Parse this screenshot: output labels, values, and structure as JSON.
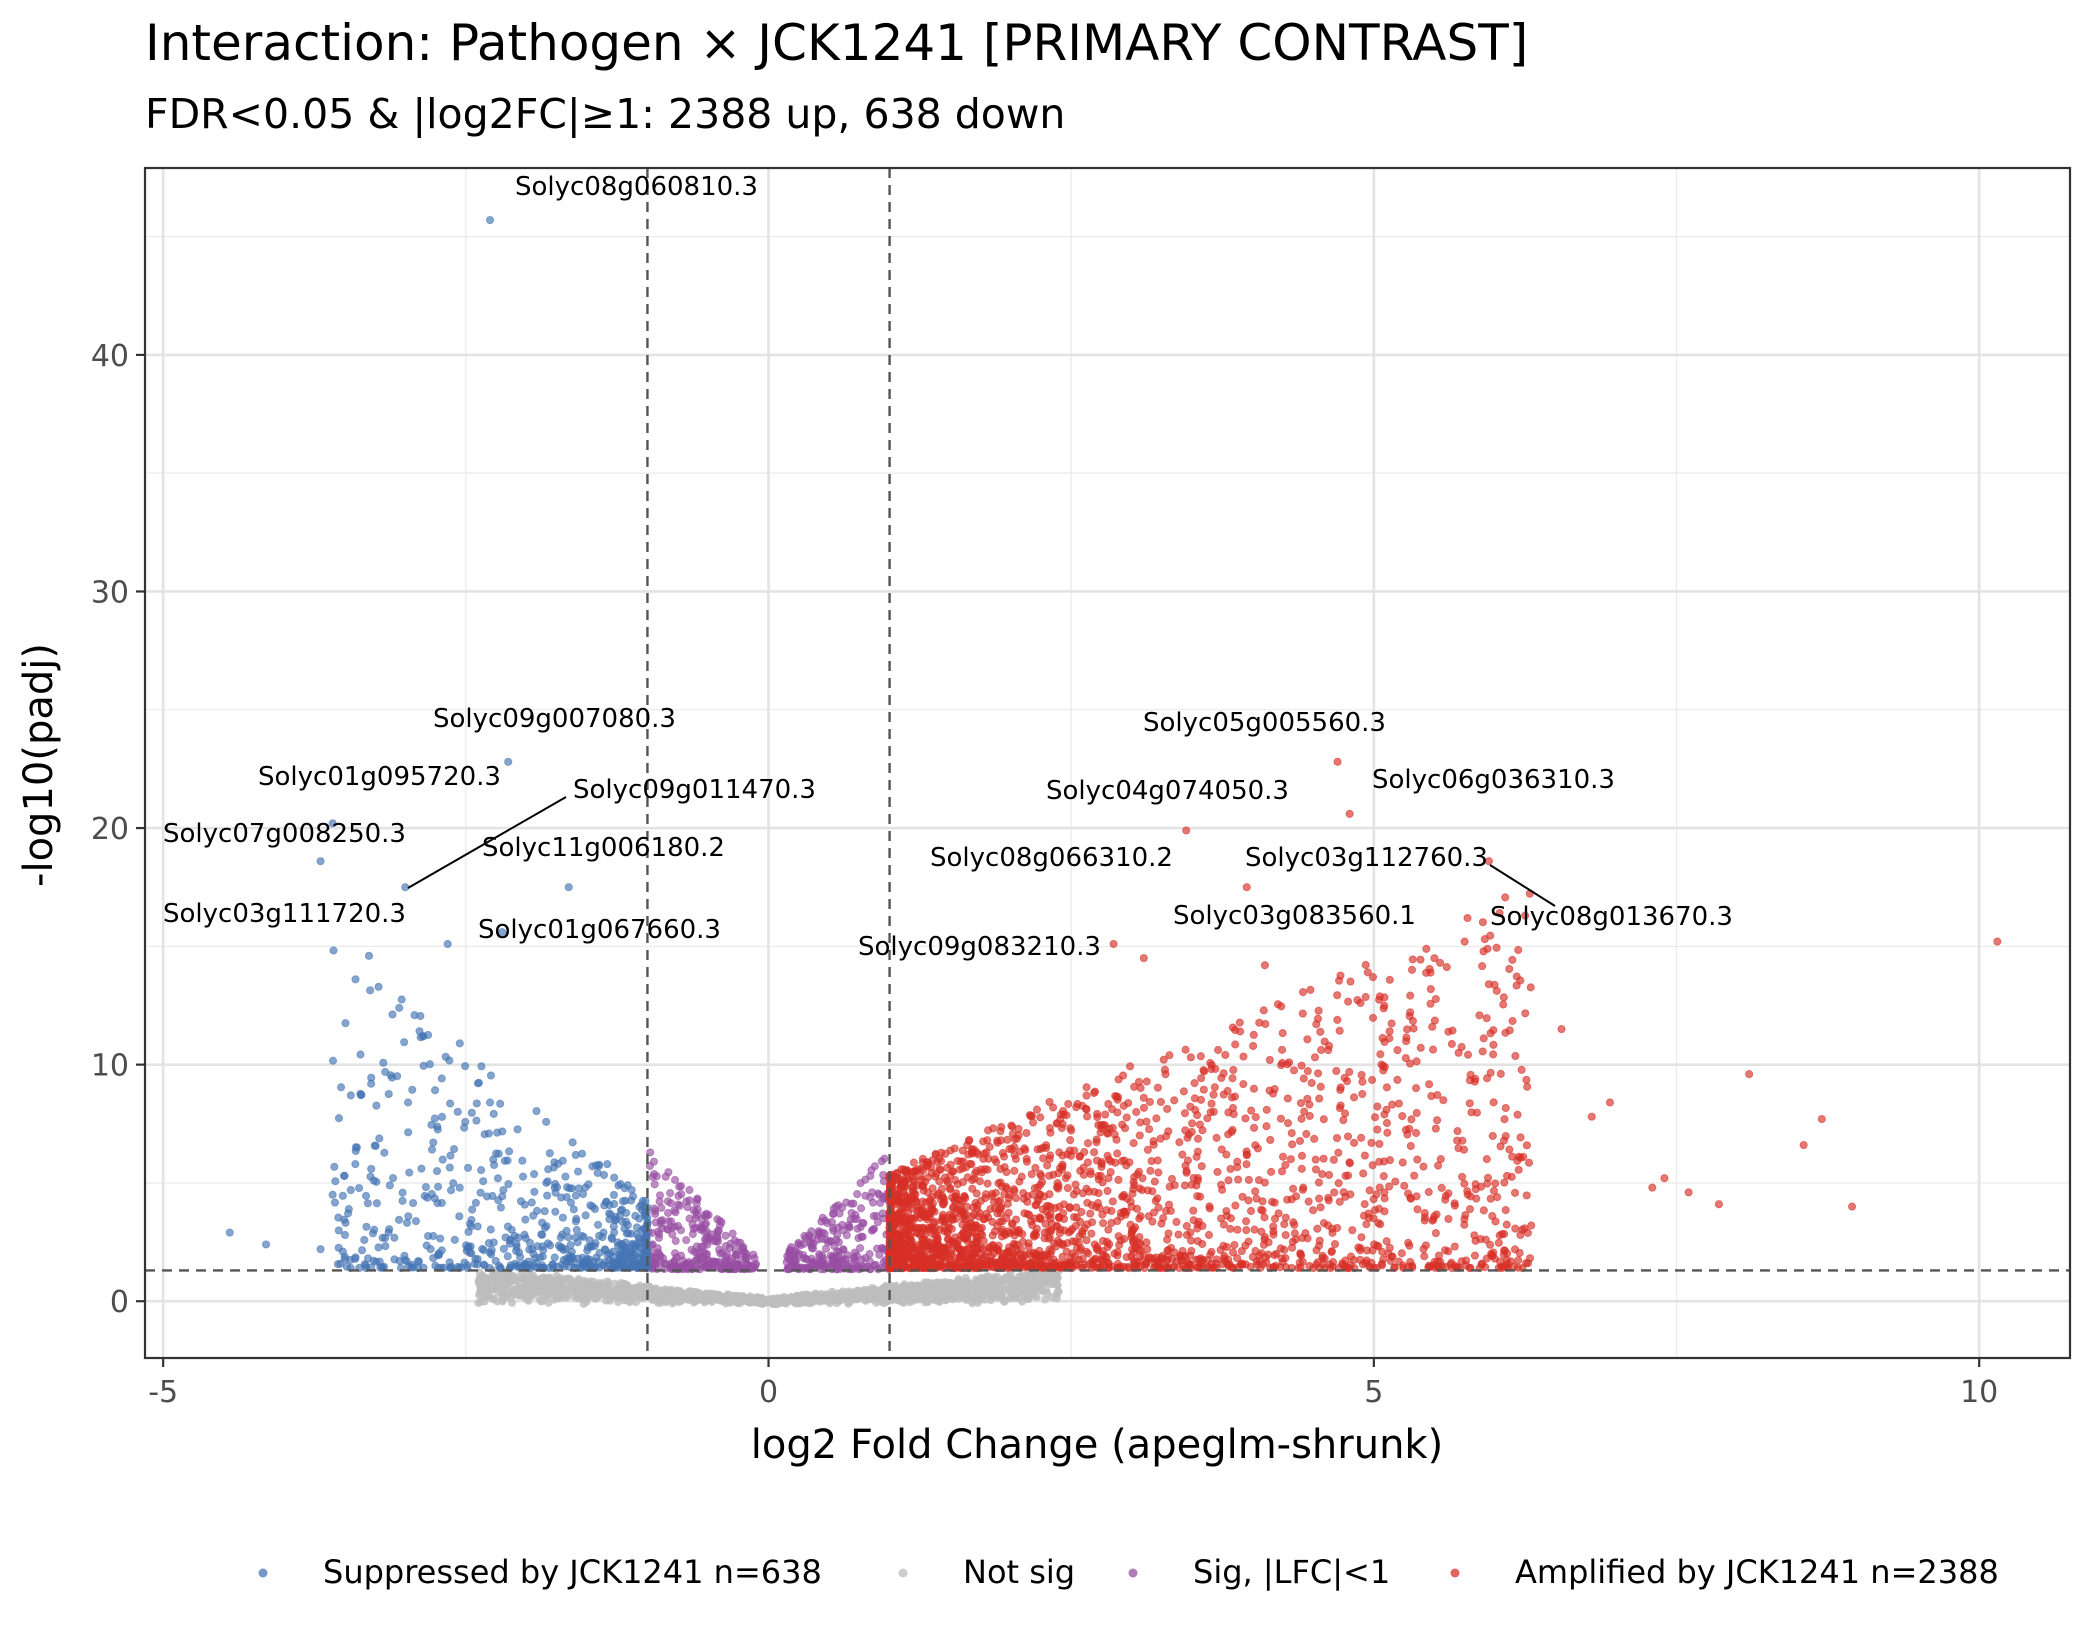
{
  "chart_data": {
    "type": "scatter",
    "title": "Interaction: Pathogen × JCK1241 [PRIMARY CONTRAST]",
    "subtitle": "FDR<0.05 & |log2FC|≥1: 2388 up, 638 down",
    "xlabel": "log2 Fold Change (apeglm-shrunk)",
    "ylabel": "-log10(padj)",
    "xlim": [
      -5.15,
      10.75
    ],
    "ylim": [
      -2.4,
      47.9
    ],
    "x_ticks": [
      -5,
      0,
      5,
      10
    ],
    "x_tick_labels": [
      "-5",
      "0",
      "5",
      "10"
    ],
    "y_ticks": [
      0,
      10,
      20,
      30,
      40
    ],
    "y_tick_labels": [
      "0",
      "10",
      "20",
      "30",
      "40"
    ],
    "grid": true,
    "legend_position": "bottom",
    "thresholds": {
      "lfc": [
        -1,
        1
      ],
      "padj_line": 1.3
    },
    "series": [
      {
        "name": "Suppressed by JCK1241 n=638",
        "color": "#4575b4",
        "count": 638
      },
      {
        "name": "Not sig",
        "color": "#bdbdbd"
      },
      {
        "name": "Sig, |LFC|<1",
        "color": "#984ea3"
      },
      {
        "name": "Amplified by JCK1241 n=2388",
        "color": "#d73027",
        "count": 2388
      }
    ],
    "labeled_points": [
      {
        "gene": "Solyc08g060810.3",
        "x": -2.3,
        "y": 45.7
      },
      {
        "gene": "Solyc09g007080.3",
        "x": -2.15,
        "y": 22.8
      },
      {
        "gene": "Solyc01g095720.3",
        "x": -3.6,
        "y": 20.2
      },
      {
        "gene": "Solyc09g011470.3",
        "x": -3.0,
        "y": 17.5
      },
      {
        "gene": "Solyc07g008250.3",
        "x": -3.7,
        "y": 18.6
      },
      {
        "gene": "Solyc11g006180.2",
        "x": -1.65,
        "y": 17.5
      },
      {
        "gene": "Solyc03g111720.3",
        "x": -2.65,
        "y": 15.1
      },
      {
        "gene": "Solyc01g067660.3",
        "x": -2.2,
        "y": 15.6
      },
      {
        "gene": "Solyc05g005560.3",
        "x": 4.7,
        "y": 22.8
      },
      {
        "gene": "Solyc04g074050.3",
        "x": 3.45,
        "y": 19.9
      },
      {
        "gene": "Solyc06g036310.3",
        "x": 4.8,
        "y": 20.6
      },
      {
        "gene": "Solyc08g066310.2",
        "x": 2.85,
        "y": 15.1
      },
      {
        "gene": "Solyc03g112760.3",
        "x": 3.95,
        "y": 17.5
      },
      {
        "gene": "Solyc08g013670.3",
        "x": 5.95,
        "y": 18.6
      },
      {
        "gene": "Solyc03g083560.1",
        "x": 5.75,
        "y": 15.2
      },
      {
        "gene": "Solyc09g083210.3",
        "x": 3.1,
        "y": 14.5
      }
    ],
    "extra_points": [
      {
        "x": 10.15,
        "y": 15.2,
        "group": 3
      },
      {
        "x": 8.7,
        "y": 7.7,
        "group": 3
      },
      {
        "x": 8.1,
        "y": 9.6,
        "group": 3
      },
      {
        "x": 8.95,
        "y": 4.0,
        "group": 3
      },
      {
        "x": 8.55,
        "y": 6.6,
        "group": 3
      },
      {
        "x": 7.85,
        "y": 4.1,
        "group": 3
      },
      {
        "x": 6.55,
        "y": 11.5,
        "group": 3
      },
      {
        "x": 5.95,
        "y": 13.4,
        "group": 3
      },
      {
        "x": 5.7,
        "y": 10.5,
        "group": 3
      },
      {
        "x": 5.5,
        "y": 14.5,
        "group": 3
      },
      {
        "x": 6.95,
        "y": 8.4,
        "group": 3
      },
      {
        "x": 6.8,
        "y": 7.8,
        "group": 3
      },
      {
        "x": 7.3,
        "y": 4.8,
        "group": 3
      },
      {
        "x": 7.4,
        "y": 5.2,
        "group": 3
      },
      {
        "x": 7.6,
        "y": 4.6,
        "group": 3
      },
      {
        "x": 6.3,
        "y": 3.2,
        "group": 3
      },
      {
        "x": 6.1,
        "y": 5.3,
        "group": 3
      },
      {
        "x": 4.1,
        "y": 14.2,
        "group": 3
      },
      {
        "x": 4.95,
        "y": 13.9,
        "group": 3
      },
      {
        "x": -4.45,
        "y": 2.9,
        "group": 0
      },
      {
        "x": -4.15,
        "y": 2.4,
        "group": 0
      },
      {
        "x": -3.7,
        "y": 2.2,
        "group": 0
      },
      {
        "x": -3.6,
        "y": 4.5,
        "group": 0
      },
      {
        "x": -3.45,
        "y": 8.7,
        "group": 0
      },
      {
        "x": -3.4,
        "y": 6.5,
        "group": 0
      },
      {
        "x": -3.45,
        "y": 4.7,
        "group": 0
      },
      {
        "x": -3.3,
        "y": 14.6,
        "group": 0
      },
      {
        "x": -3.05,
        "y": 12.4,
        "group": 0
      },
      {
        "x": -2.55,
        "y": 10.9,
        "group": 0
      },
      {
        "x": -2.3,
        "y": 8.4,
        "group": 0
      }
    ]
  }
}
